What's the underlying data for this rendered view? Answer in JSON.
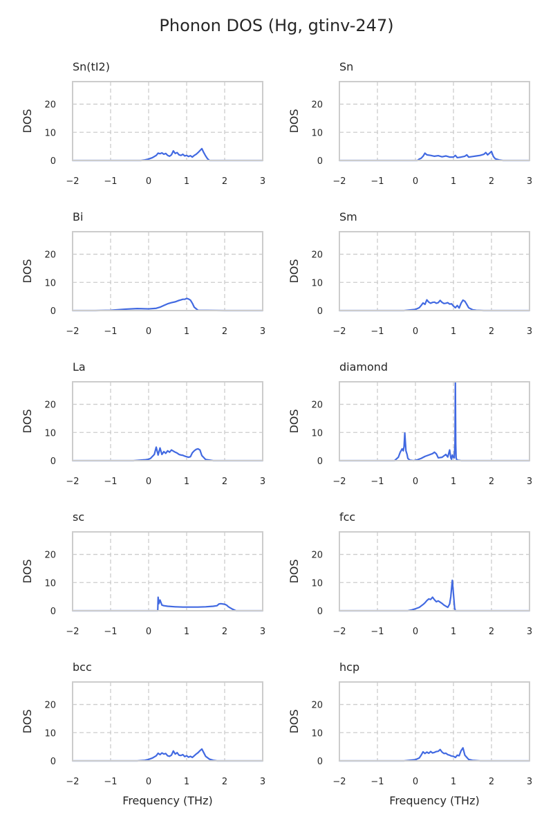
{
  "figure": {
    "title": "Phonon DOS (Hg, gtinv-247)",
    "xlabel": "Frequency (THz)",
    "ylabel": "DOS",
    "line_color": "#4169e1",
    "grid_color": "#cccccc",
    "frame_color": "#cccccc"
  },
  "chart_data": [
    {
      "type": "line",
      "title": "Sn(tI2)",
      "xlabel": "",
      "ylabel": "DOS",
      "xlim": [
        -2,
        3
      ],
      "ylim": [
        0,
        28
      ],
      "xticks": [
        -2,
        -1,
        0,
        1,
        2,
        3
      ],
      "yticks": [
        0,
        10,
        20
      ],
      "grid": true,
      "x": [
        -2,
        -0.2,
        -0.1,
        0,
        0.1,
        0.2,
        0.25,
        0.3,
        0.35,
        0.4,
        0.45,
        0.5,
        0.55,
        0.6,
        0.65,
        0.7,
        0.75,
        0.8,
        0.85,
        0.9,
        0.95,
        1.0,
        1.05,
        1.1,
        1.15,
        1.2,
        1.25,
        1.3,
        1.35,
        1.4,
        1.45,
        1.5,
        1.55,
        1.6,
        3
      ],
      "y": [
        0,
        0,
        0.2,
        0.5,
        1.0,
        1.8,
        2.6,
        2.4,
        2.7,
        2.2,
        2.5,
        1.8,
        1.5,
        2.0,
        3.4,
        2.5,
        2.8,
        2.0,
        1.8,
        2.2,
        1.6,
        1.8,
        1.4,
        1.7,
        1.2,
        1.8,
        2.2,
        2.8,
        3.5,
        4.2,
        2.8,
        1.6,
        0.6,
        0,
        0
      ]
    },
    {
      "type": "line",
      "title": "Sn",
      "xlabel": "",
      "ylabel": "DOS",
      "xlim": [
        -2,
        3
      ],
      "ylim": [
        0,
        28
      ],
      "xticks": [
        -2,
        -1,
        0,
        1,
        2,
        3
      ],
      "yticks": [
        0,
        10,
        20
      ],
      "grid": true,
      "x": [
        -2,
        0.05,
        0.1,
        0.15,
        0.2,
        0.25,
        0.3,
        0.4,
        0.5,
        0.6,
        0.7,
        0.8,
        0.9,
        1.0,
        1.05,
        1.1,
        1.2,
        1.3,
        1.35,
        1.4,
        1.5,
        1.6,
        1.7,
        1.8,
        1.85,
        1.9,
        1.95,
        2.0,
        2.05,
        2.1,
        2.2,
        2.3,
        3
      ],
      "y": [
        0,
        0,
        0.5,
        0.8,
        1.5,
        2.6,
        2.0,
        1.8,
        1.5,
        1.7,
        1.3,
        1.6,
        1.2,
        1.2,
        1.8,
        1.0,
        1.2,
        1.5,
        2.0,
        1.2,
        1.4,
        1.6,
        1.8,
        2.2,
        2.8,
        2.0,
        2.6,
        3.2,
        1.4,
        0.6,
        0.2,
        0,
        0
      ]
    },
    {
      "type": "line",
      "title": "Bi",
      "xlabel": "",
      "ylabel": "DOS",
      "xlim": [
        -2,
        3
      ],
      "ylim": [
        0,
        28
      ],
      "xticks": [
        -2,
        -1,
        0,
        1,
        2,
        3
      ],
      "yticks": [
        0,
        10,
        20
      ],
      "grid": true,
      "x": [
        -2,
        -1.4,
        -1.0,
        -0.6,
        -0.3,
        0,
        0.2,
        0.3,
        0.4,
        0.5,
        0.6,
        0.7,
        0.8,
        0.85,
        0.9,
        0.95,
        1.0,
        1.05,
        1.1,
        1.15,
        1.2,
        1.3,
        2.0,
        3
      ],
      "y": [
        0,
        0,
        0.1,
        0.5,
        0.7,
        0.6,
        0.8,
        1.2,
        1.8,
        2.4,
        2.8,
        3.1,
        3.6,
        3.8,
        4.0,
        4.0,
        4.3,
        4.1,
        3.7,
        2.6,
        1.2,
        0.1,
        0,
        0
      ]
    },
    {
      "type": "line",
      "title": "Sm",
      "xlabel": "",
      "ylabel": "DOS",
      "xlim": [
        -2,
        3
      ],
      "ylim": [
        0,
        28
      ],
      "xticks": [
        -2,
        -1,
        0,
        1,
        2,
        3
      ],
      "yticks": [
        0,
        10,
        20
      ],
      "grid": true,
      "x": [
        -2,
        -0.3,
        0,
        0.1,
        0.15,
        0.2,
        0.25,
        0.3,
        0.35,
        0.4,
        0.45,
        0.5,
        0.55,
        0.6,
        0.65,
        0.7,
        0.75,
        0.8,
        0.85,
        0.9,
        0.95,
        1.0,
        1.05,
        1.1,
        1.15,
        1.2,
        1.25,
        1.3,
        1.35,
        1.4,
        1.5,
        1.6,
        1.8,
        3
      ],
      "y": [
        0,
        0,
        0.4,
        1.0,
        1.8,
        2.7,
        2.2,
        3.8,
        3.0,
        2.6,
        2.9,
        3.0,
        2.6,
        2.8,
        3.6,
        2.9,
        2.5,
        2.6,
        2.8,
        2.3,
        2.4,
        1.6,
        1.0,
        1.8,
        0.9,
        2.6,
        3.7,
        3.3,
        2.2,
        1.0,
        0.3,
        0.1,
        0,
        0
      ]
    },
    {
      "type": "line",
      "title": "La",
      "xlabel": "",
      "ylabel": "DOS",
      "xlim": [
        -2,
        3
      ],
      "ylim": [
        0,
        28
      ],
      "xticks": [
        -2,
        -1,
        0,
        1,
        2,
        3
      ],
      "yticks": [
        0,
        10,
        20
      ],
      "grid": true,
      "x": [
        -2,
        -0.4,
        -0.1,
        0,
        0.05,
        0.1,
        0.15,
        0.2,
        0.25,
        0.3,
        0.35,
        0.4,
        0.45,
        0.5,
        0.55,
        0.6,
        0.65,
        0.7,
        0.75,
        0.8,
        0.85,
        0.9,
        0.95,
        1.0,
        1.05,
        1.1,
        1.15,
        1.2,
        1.25,
        1.3,
        1.35,
        1.4,
        1.5,
        1.7,
        3
      ],
      "y": [
        0,
        0,
        0.3,
        0.5,
        0.8,
        1.5,
        2.2,
        4.8,
        2.0,
        4.5,
        2.2,
        3.2,
        2.6,
        3.5,
        3.0,
        3.8,
        3.4,
        3.0,
        2.7,
        2.2,
        2.0,
        1.9,
        1.6,
        1.4,
        1.2,
        1.4,
        2.8,
        3.5,
        4.0,
        4.2,
        3.8,
        1.8,
        0.4,
        0,
        0
      ]
    },
    {
      "type": "line",
      "title": "diamond",
      "xlabel": "",
      "ylabel": "DOS",
      "xlim": [
        -2,
        3
      ],
      "ylim": [
        0,
        28
      ],
      "xticks": [
        -2,
        -1,
        0,
        1,
        2,
        3
      ],
      "yticks": [
        0,
        10,
        20
      ],
      "grid": true,
      "x": [
        -2,
        -0.55,
        -0.45,
        -0.4,
        -0.35,
        -0.32,
        -0.3,
        -0.28,
        -0.25,
        -0.22,
        -0.2,
        -0.15,
        -0.05,
        0.05,
        0.15,
        0.25,
        0.35,
        0.45,
        0.5,
        0.55,
        0.6,
        0.7,
        0.8,
        0.85,
        0.9,
        0.93,
        0.95,
        0.97,
        1.0,
        1.02,
        1.04,
        1.05,
        1.06,
        1.07,
        1.09,
        1.2,
        3
      ],
      "y": [
        0,
        0,
        1.2,
        3.0,
        4.2,
        3.5,
        5.0,
        9.8,
        3.5,
        2.2,
        0.8,
        0.2,
        0,
        0.3,
        0.8,
        1.5,
        2.0,
        2.5,
        3.0,
        2.4,
        1.0,
        1.2,
        2.2,
        1.3,
        3.8,
        1.0,
        0.5,
        2.0,
        1.2,
        1.0,
        6.0,
        28,
        6.0,
        1.0,
        0.2,
        0,
        0
      ]
    },
    {
      "type": "line",
      "title": "sc",
      "xlabel": "",
      "ylabel": "DOS",
      "xlim": [
        -2,
        3
      ],
      "ylim": [
        0,
        28
      ],
      "xticks": [
        -2,
        -1,
        0,
        1,
        2,
        3
      ],
      "yticks": [
        0,
        10,
        20
      ],
      "grid": true,
      "x": [
        -2,
        0.24,
        0.25,
        0.27,
        0.3,
        0.35,
        0.4,
        0.5,
        0.7,
        0.9,
        1.1,
        1.3,
        1.5,
        1.7,
        1.8,
        1.85,
        1.9,
        2.0,
        2.05,
        2.1,
        2.2,
        2.3,
        3
      ],
      "y": [
        0,
        0,
        4.8,
        2.5,
        3.8,
        2.0,
        1.8,
        1.6,
        1.4,
        1.3,
        1.3,
        1.3,
        1.4,
        1.6,
        1.8,
        2.4,
        2.5,
        2.3,
        2.0,
        1.4,
        0.6,
        0,
        0
      ]
    },
    {
      "type": "line",
      "title": "fcc",
      "xlabel": "",
      "ylabel": "DOS",
      "xlim": [
        -2,
        3
      ],
      "ylim": [
        0,
        28
      ],
      "xticks": [
        -2,
        -1,
        0,
        1,
        2,
        3
      ],
      "yticks": [
        0,
        10,
        20
      ],
      "grid": true,
      "x": [
        -2,
        -0.2,
        -0.1,
        0,
        0.1,
        0.2,
        0.25,
        0.3,
        0.35,
        0.4,
        0.45,
        0.5,
        0.55,
        0.6,
        0.7,
        0.75,
        0.8,
        0.85,
        0.9,
        0.93,
        0.95,
        0.97,
        1.0,
        1.03,
        1.05,
        3
      ],
      "y": [
        0,
        0,
        0.3,
        0.7,
        1.2,
        2.2,
        2.8,
        3.6,
        4.2,
        4.0,
        4.8,
        3.9,
        3.2,
        3.5,
        2.6,
        2.0,
        1.6,
        1.2,
        2.4,
        5.0,
        8.0,
        10.8,
        6.0,
        1.0,
        0,
        0
      ]
    },
    {
      "type": "line",
      "title": "bcc",
      "xlabel": "",
      "ylabel": "DOS",
      "xlim": [
        -2,
        3
      ],
      "ylim": [
        0,
        28
      ],
      "xticks": [
        -2,
        -1,
        0,
        1,
        2,
        3
      ],
      "yticks": [
        0,
        10,
        20
      ],
      "grid": true,
      "x": [
        -2,
        -0.3,
        -0.1,
        0,
        0.1,
        0.2,
        0.25,
        0.3,
        0.35,
        0.4,
        0.45,
        0.5,
        0.55,
        0.6,
        0.65,
        0.7,
        0.75,
        0.8,
        0.85,
        0.9,
        0.95,
        1.0,
        1.05,
        1.1,
        1.15,
        1.2,
        1.25,
        1.3,
        1.35,
        1.4,
        1.45,
        1.5,
        1.6,
        1.7,
        1.8,
        3
      ],
      "y": [
        0,
        0,
        0.2,
        0.5,
        1.0,
        1.8,
        2.7,
        2.2,
        2.8,
        2.4,
        2.6,
        1.8,
        1.6,
        2.0,
        3.5,
        2.4,
        2.9,
        2.0,
        1.9,
        2.2,
        1.5,
        1.8,
        1.3,
        1.6,
        1.2,
        1.8,
        2.4,
        2.9,
        3.6,
        4.2,
        2.9,
        1.6,
        0.6,
        0.2,
        0,
        0
      ]
    },
    {
      "type": "line",
      "title": "hcp",
      "xlabel": "",
      "ylabel": "DOS",
      "xlim": [
        -2,
        3
      ],
      "ylim": [
        0,
        28
      ],
      "xticks": [
        -2,
        -1,
        0,
        1,
        2,
        3
      ],
      "yticks": [
        0,
        10,
        20
      ],
      "grid": true,
      "x": [
        -2,
        -0.3,
        0,
        0.1,
        0.15,
        0.2,
        0.25,
        0.3,
        0.35,
        0.4,
        0.45,
        0.5,
        0.55,
        0.6,
        0.65,
        0.7,
        0.75,
        0.8,
        0.85,
        0.9,
        0.95,
        1.0,
        1.05,
        1.1,
        1.15,
        1.2,
        1.25,
        1.3,
        1.4,
        1.5,
        1.7,
        3
      ],
      "y": [
        0,
        0,
        0.4,
        1.0,
        2.0,
        3.2,
        2.6,
        3.1,
        2.7,
        3.3,
        2.8,
        3.0,
        3.3,
        3.4,
        4.0,
        3.1,
        2.6,
        2.7,
        2.2,
        2.0,
        1.7,
        1.6,
        1.2,
        2.0,
        1.8,
        3.6,
        4.6,
        2.0,
        0.5,
        0.2,
        0,
        0
      ]
    }
  ]
}
